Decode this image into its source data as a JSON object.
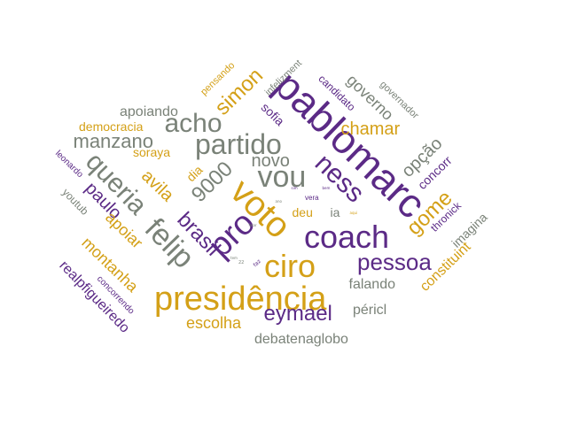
{
  "colors": {
    "purple": "#5b2a86",
    "gold": "#d4a017",
    "gray": "#7a8278"
  },
  "words": [
    {
      "text": "pablomarc",
      "color": "purple"
    },
    {
      "text": "presidência",
      "color": "gold"
    },
    {
      "text": "coach",
      "color": "purple"
    },
    {
      "text": "ciro",
      "color": "gold"
    },
    {
      "text": "partido",
      "color": "gray"
    },
    {
      "text": "voto",
      "color": "gold"
    },
    {
      "text": "vou",
      "color": "gray"
    },
    {
      "text": "ness",
      "color": "purple"
    },
    {
      "text": "felip",
      "color": "gray"
    },
    {
      "text": "pro",
      "color": "purple"
    },
    {
      "text": "queria",
      "color": "gray"
    },
    {
      "text": "acho",
      "color": "gray"
    },
    {
      "text": "pessoa",
      "color": "purple"
    },
    {
      "text": "eymael",
      "color": "purple"
    },
    {
      "text": "manzano",
      "color": "gray"
    },
    {
      "text": "9000",
      "color": "gray"
    },
    {
      "text": "brasil",
      "color": "purple"
    },
    {
      "text": "gome",
      "color": "gold"
    },
    {
      "text": "simon",
      "color": "gold"
    },
    {
      "text": "novo",
      "color": "gray"
    },
    {
      "text": "avila",
      "color": "gold"
    },
    {
      "text": "paulo",
      "color": "purple"
    },
    {
      "text": "apoiar",
      "color": "gold"
    },
    {
      "text": "chamar",
      "color": "gold"
    },
    {
      "text": "opção",
      "color": "gray"
    },
    {
      "text": "governo",
      "color": "gray"
    },
    {
      "text": "montanha",
      "color": "gold"
    },
    {
      "text": "escolha",
      "color": "gold"
    },
    {
      "text": "péricl",
      "color": "gray"
    },
    {
      "text": "falando",
      "color": "gray"
    },
    {
      "text": "debatenaglobo",
      "color": "gray"
    },
    {
      "text": "apoiando",
      "color": "gray"
    },
    {
      "text": "democracia",
      "color": "gold"
    },
    {
      "text": "soraya",
      "color": "gold"
    },
    {
      "text": "constituint",
      "color": "gold"
    },
    {
      "text": "realpfigueiredo",
      "color": "purple"
    },
    {
      "text": "deu",
      "color": "gold"
    },
    {
      "text": "ia",
      "color": "gray"
    },
    {
      "text": "dia",
      "color": "gold"
    },
    {
      "text": "sofia",
      "color": "purple"
    },
    {
      "text": "concorr",
      "color": "purple"
    },
    {
      "text": "imagina",
      "color": "gray"
    },
    {
      "text": "thronick",
      "color": "purple"
    },
    {
      "text": "youtub",
      "color": "gray"
    },
    {
      "text": "candidato",
      "color": "purple"
    },
    {
      "text": "governador",
      "color": "gray"
    },
    {
      "text": "pensando",
      "color": "gold"
    },
    {
      "text": "infelizment",
      "color": "gray"
    },
    {
      "text": "leonardo",
      "color": "purple"
    },
    {
      "text": "concorrendo",
      "color": "purple"
    },
    {
      "text": "vera",
      "color": "purple"
    },
    {
      "text": "faz",
      "color": "purple"
    },
    {
      "text": "22",
      "color": "gray"
    },
    {
      "text": "ano",
      "color": "gray"
    },
    {
      "text": "aqui",
      "color": "gold"
    },
    {
      "text": "bem",
      "color": "purple"
    },
    {
      "text": "falar",
      "color": "gray"
    },
    {
      "text": "sim",
      "color": "purple"
    },
    {
      "text": "tem",
      "color": "gray"
    }
  ]
}
